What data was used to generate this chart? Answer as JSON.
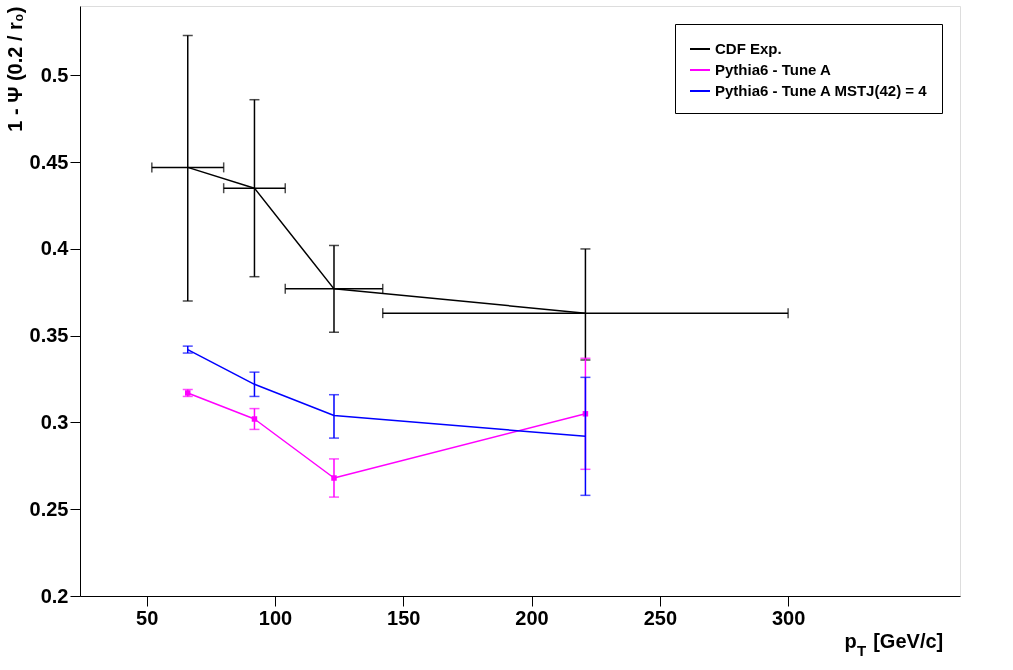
{
  "chart_data": {
    "type": "line",
    "xlabel": "p$_{T}$ [GeV/c]",
    "ylabel": "1 - Ψ (0.2 / r₀)",
    "xlim": [
      24,
      367
    ],
    "xticks": [
      50,
      100,
      150,
      200,
      250,
      300
    ],
    "ylim": [
      0.2,
      0.54
    ],
    "yticks": [
      0.2,
      0.25,
      0.3,
      0.35,
      0.4,
      0.45,
      0.5
    ],
    "grid": false,
    "legend": "top right",
    "series": [
      {
        "name": "CDF Exp.",
        "color": "#000000",
        "marker": "none",
        "x": [
          66,
          92,
          123,
          221
        ],
        "values": [
          0.447,
          0.435,
          0.377,
          0.363
        ],
        "errors": [
          [
            0.37,
            0.523
          ],
          [
            0.384,
            0.486
          ],
          [
            0.352,
            0.402
          ],
          [
            0.336,
            0.4
          ]
        ],
        "xerrors": [
          [
            52,
            80
          ],
          [
            80,
            104
          ],
          [
            104,
            142
          ],
          [
            142,
            300
          ]
        ]
      },
      {
        "name": "Pythia6 - Tune A",
        "color": "#ff00ff",
        "marker": "square",
        "x": [
          66,
          92,
          123,
          221
        ],
        "values": [
          0.317,
          0.302,
          0.268,
          0.305
        ],
        "errors": [
          [
            0.315,
            0.319
          ],
          [
            0.296,
            0.308
          ],
          [
            0.257,
            0.279
          ],
          [
            0.273,
            0.337
          ]
        ]
      },
      {
        "name": "Pythia6 - Tune A MSTJ(42) = 4",
        "color": "#0000ff",
        "marker": "none",
        "x": [
          66,
          92,
          123,
          221
        ],
        "values": [
          0.342,
          0.322,
          0.304,
          0.292
        ],
        "errors": [
          [
            0.34,
            0.344
          ],
          [
            0.315,
            0.329
          ],
          [
            0.291,
            0.316
          ],
          [
            0.258,
            0.326
          ]
        ]
      }
    ]
  }
}
